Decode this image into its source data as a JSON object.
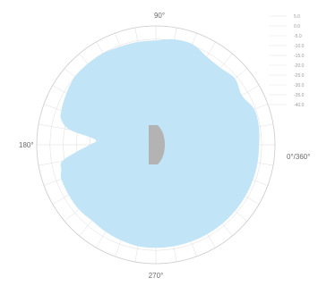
{
  "chart_data": {
    "type": "area",
    "subtype": "polar",
    "title": "",
    "angle_labels": [
      {
        "angle": 90,
        "text": "90°"
      },
      {
        "angle": 180,
        "text": "180°"
      },
      {
        "angle": 270,
        "text": "270°"
      },
      {
        "angle": 0,
        "text": "0°/360°"
      }
    ],
    "radial_ticks": [
      "5.0",
      "0.0",
      "-5.0",
      "-10.0",
      "-15.0",
      "-20.0",
      "-25.0",
      "-30.0",
      "-35.0",
      "-40.0"
    ],
    "rlim": [
      -40,
      5
    ],
    "angular_grid_step_deg": 10,
    "grid": true,
    "colors": {
      "fill": "#bfe3f7",
      "center_marker": "#b3b3b3",
      "grid": "#dddddd",
      "ring": "#cccccc"
    },
    "series": [
      {
        "type": "area",
        "theta_deg": [
          0,
          10,
          20,
          30,
          40,
          50,
          60,
          70,
          80,
          90,
          100,
          110,
          120,
          130,
          140,
          150,
          160,
          165,
          170,
          175,
          180,
          185,
          190,
          195,
          200,
          210,
          220,
          230,
          240,
          250,
          260,
          270,
          280,
          290,
          300,
          310,
          320,
          330,
          340,
          350
        ],
        "r_db": [
          -1.0,
          -0.5,
          -0.5,
          -2.5,
          -1.0,
          -2.0,
          -1.5,
          0.5,
          0.5,
          -0.5,
          -0.5,
          -0.5,
          0.0,
          0.0,
          0.0,
          -1.0,
          -2.0,
          -3.0,
          -7.0,
          -17.0,
          -15.0,
          -10.0,
          -4.0,
          -3.0,
          -2.0,
          -2.0,
          -2.0,
          -2.5,
          -2.0,
          -1.5,
          -1.0,
          -1.0,
          -1.0,
          -1.0,
          -1.0,
          -1.0,
          -1.0,
          -1.0,
          -1.0,
          -1.0
        ]
      }
    ],
    "center_marker": {
      "type": "device",
      "label": ""
    }
  }
}
